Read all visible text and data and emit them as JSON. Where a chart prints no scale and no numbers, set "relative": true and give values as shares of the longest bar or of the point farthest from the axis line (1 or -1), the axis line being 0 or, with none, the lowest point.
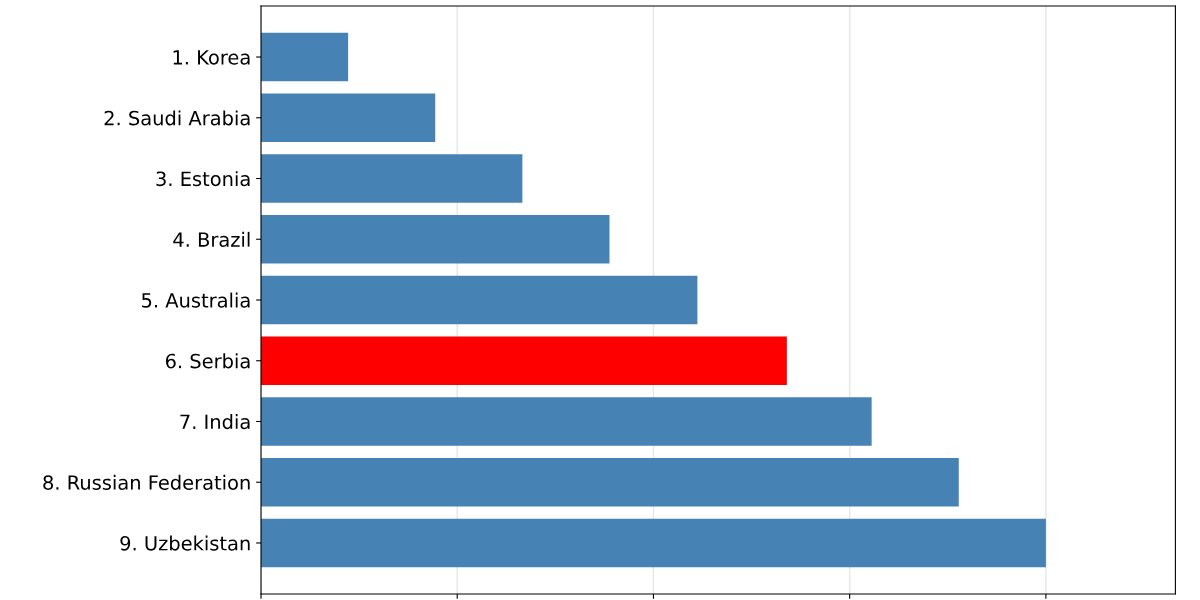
{
  "chart_data": {
    "type": "bar",
    "orientation": "horizontal",
    "relative": true,
    "grid": "x",
    "categories": [
      "1. Korea",
      "2. Saudi Arabia",
      "3. Estonia",
      "4. Brazil",
      "5. Australia",
      "6. Serbia",
      "7. India",
      "8. Russian Federation",
      "9. Uzbekistan"
    ],
    "values": [
      0.111,
      0.222,
      0.333,
      0.444,
      0.556,
      0.67,
      0.778,
      0.889,
      1.0
    ],
    "colors": [
      "#4682b4",
      "#4682b4",
      "#4682b4",
      "#4682b4",
      "#4682b4",
      "#ff0000",
      "#4682b4",
      "#4682b4",
      "#4682b4"
    ]
  }
}
